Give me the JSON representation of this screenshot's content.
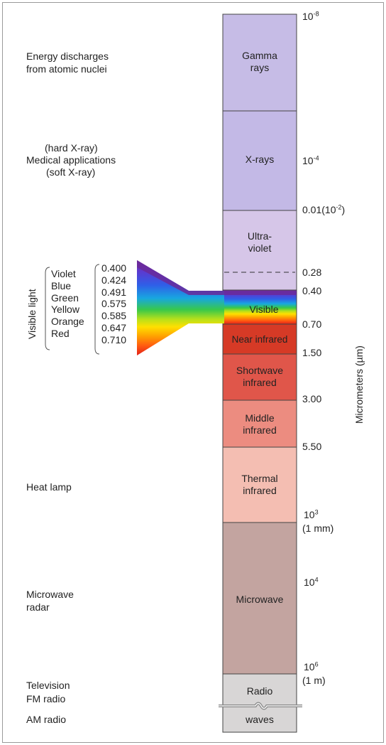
{
  "axis_label": "Micrometers (µm)",
  "left_labels": {
    "energy": [
      "Energy discharges",
      "from atomic nuclei"
    ],
    "xray": [
      "(hard X-ray)",
      "Medical applications",
      "(soft X-ray)"
    ],
    "heat": "Heat lamp",
    "microwave": [
      "Microwave",
      "radar"
    ],
    "tv": "Television",
    "fm": "FM radio",
    "am": "AM radio"
  },
  "visible_light": {
    "title": "Visible light",
    "colors": [
      "Violet",
      "Blue",
      "Green",
      "Yellow",
      "Orange",
      "Red"
    ],
    "wavelengths": [
      "0.400",
      "0.424",
      "0.491",
      "0.575",
      "0.585",
      "0.647",
      "0.710"
    ]
  },
  "bands": {
    "gamma": [
      "Gamma",
      "rays"
    ],
    "xrays": "X-rays",
    "uv": [
      "Ultra-",
      "violet"
    ],
    "visible": "Visible",
    "near_ir": "Near infrared",
    "swir": [
      "Shortwave",
      "infrared"
    ],
    "mir": [
      "Middle",
      "infrared"
    ],
    "tir": [
      "Thermal",
      "infrared"
    ],
    "microwave": "Microwave",
    "radio": "Radio",
    "waves": "waves"
  },
  "ticks": {
    "t1": {
      "base": "10",
      "exp": "-8"
    },
    "t2": {
      "base": "10",
      "exp": "-4"
    },
    "t3": {
      "pre": "0.01(10",
      "exp": "-2",
      "post": ")"
    },
    "t4": "0.28",
    "t5": "0.40",
    "t6": "0.70",
    "t7": "1.50",
    "t8": "3.00",
    "t9": "5.50",
    "t10": {
      "base": "10",
      "exp": "3"
    },
    "t10b": "(1 mm)",
    "t11": {
      "base": "10",
      "exp": "4"
    },
    "t12": {
      "base": "10",
      "exp": "6"
    },
    "t12b": "(1 m)"
  },
  "colors": {
    "gamma": "#c6bce6",
    "xrays": "#c3b9e6",
    "uv": "#d6c6e8",
    "near_ir": "#d63a26",
    "swir": "#e0564a",
    "mir": "#ec8c80",
    "tir": "#f4beb2",
    "microwave": "#c3a4a0",
    "radio": "#d8d6d6"
  }
}
